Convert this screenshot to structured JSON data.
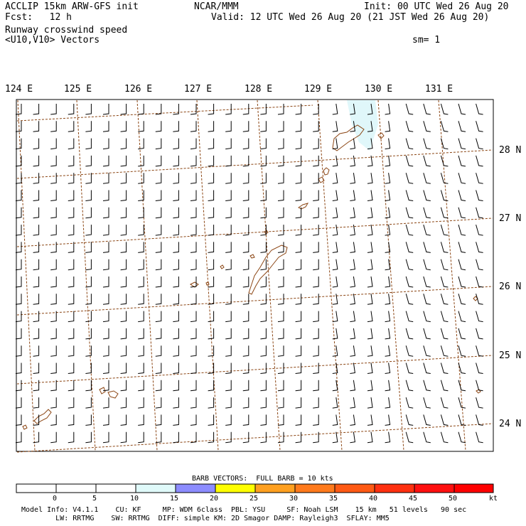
{
  "header": {
    "left_line1": "ACCLIP 15km ARW-GFS init",
    "left_line2": "Fcst:   12 h",
    "center": "NCAR/MMM",
    "init": "Init: 00 UTC Wed 26 Aug 20",
    "valid": "Valid: 12 UTC Wed 26 Aug 20 (21 JST Wed 26 Aug 20)",
    "field_name": "Runway crosswind speed",
    "vectors": "<U10,V10> Vectors",
    "smoothing": "sm= 1"
  },
  "map": {
    "lon_labels": [
      "124 E",
      "125 E",
      "126 E",
      "127 E",
      "128 E",
      "129 E",
      "130 E",
      "131 E"
    ],
    "lat_labels": [
      "28 N",
      "27 N",
      "26 N",
      "25 N",
      "24 N"
    ],
    "coastline_color": "#8b4513",
    "grid_color": "#8b4513",
    "sea_ice_shading_color": "#e0f7fa",
    "barb_color": "#000000"
  },
  "colorbar": {
    "title": "BARB VECTORS:  FULL BARB = 10 kts",
    "tick_labels": [
      "0",
      "5",
      "10",
      "15",
      "20",
      "25",
      "30",
      "35",
      "40",
      "45",
      "50"
    ],
    "unit": "kt",
    "bin_colors": [
      "#ffffff",
      "#ffffff",
      "#ffffff",
      "#e0fafa",
      "#8c8cff",
      "#ffff00",
      "#ffa020",
      "#ff7a1c",
      "#ff5a14",
      "#ff3010",
      "#ff1010",
      "#ff0000"
    ]
  },
  "footer": {
    "line1": "Model Info: V4.1.1    CU: KF     MP: WDM 6class  PBL: YSU     SF: Noah LSM    15 km   51 levels   90 sec",
    "line2": "        LW: RRTMG    SW: RRTMG  DIFF: simple KM: 2D Smagor DAMP: Rayleigh3  SFLAY: MM5"
  }
}
